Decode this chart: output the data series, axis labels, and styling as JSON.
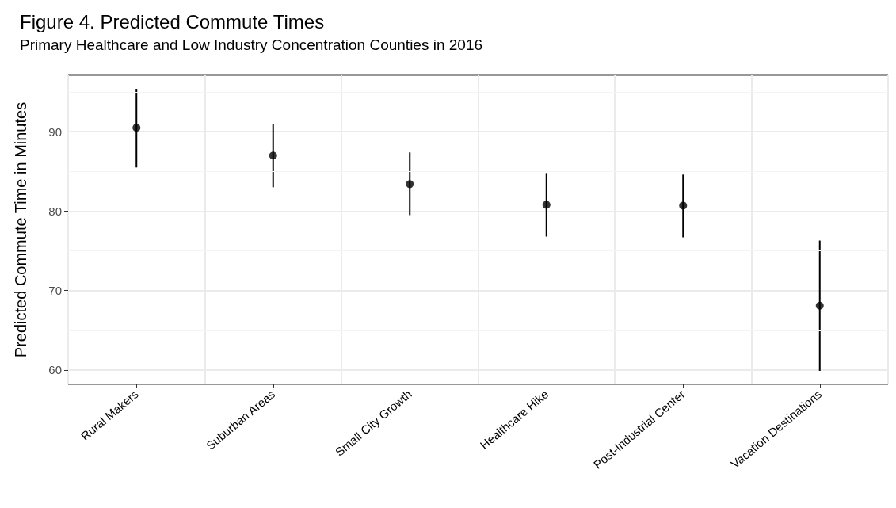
{
  "chart_data": {
    "type": "scatter",
    "title": "Figure 4. Predicted Commute Times",
    "subtitle": "Primary Healthcare and Low Industry Concentration Counties in 2016",
    "ylabel": "Predicted Commute Time in Minutes",
    "categories": [
      "Rural Makers",
      "Suburban Areas",
      "Small City Growth",
      "Healthcare Hike",
      "Post-Industrial Center",
      "Vacation Destinations"
    ],
    "values": [
      90.5,
      87.0,
      83.4,
      80.8,
      80.7,
      68.1
    ],
    "errors": [
      [
        85.5,
        95.4
      ],
      [
        83.0,
        91.0
      ],
      [
        79.5,
        87.4
      ],
      [
        76.8,
        84.8
      ],
      [
        76.7,
        84.6
      ],
      [
        59.9,
        76.3
      ]
    ],
    "color": "#000000",
    "marker": "circle",
    "ylim": [
      58.2,
      97.1
    ],
    "yticks": [
      60,
      70,
      80,
      90
    ],
    "grid": true
  }
}
